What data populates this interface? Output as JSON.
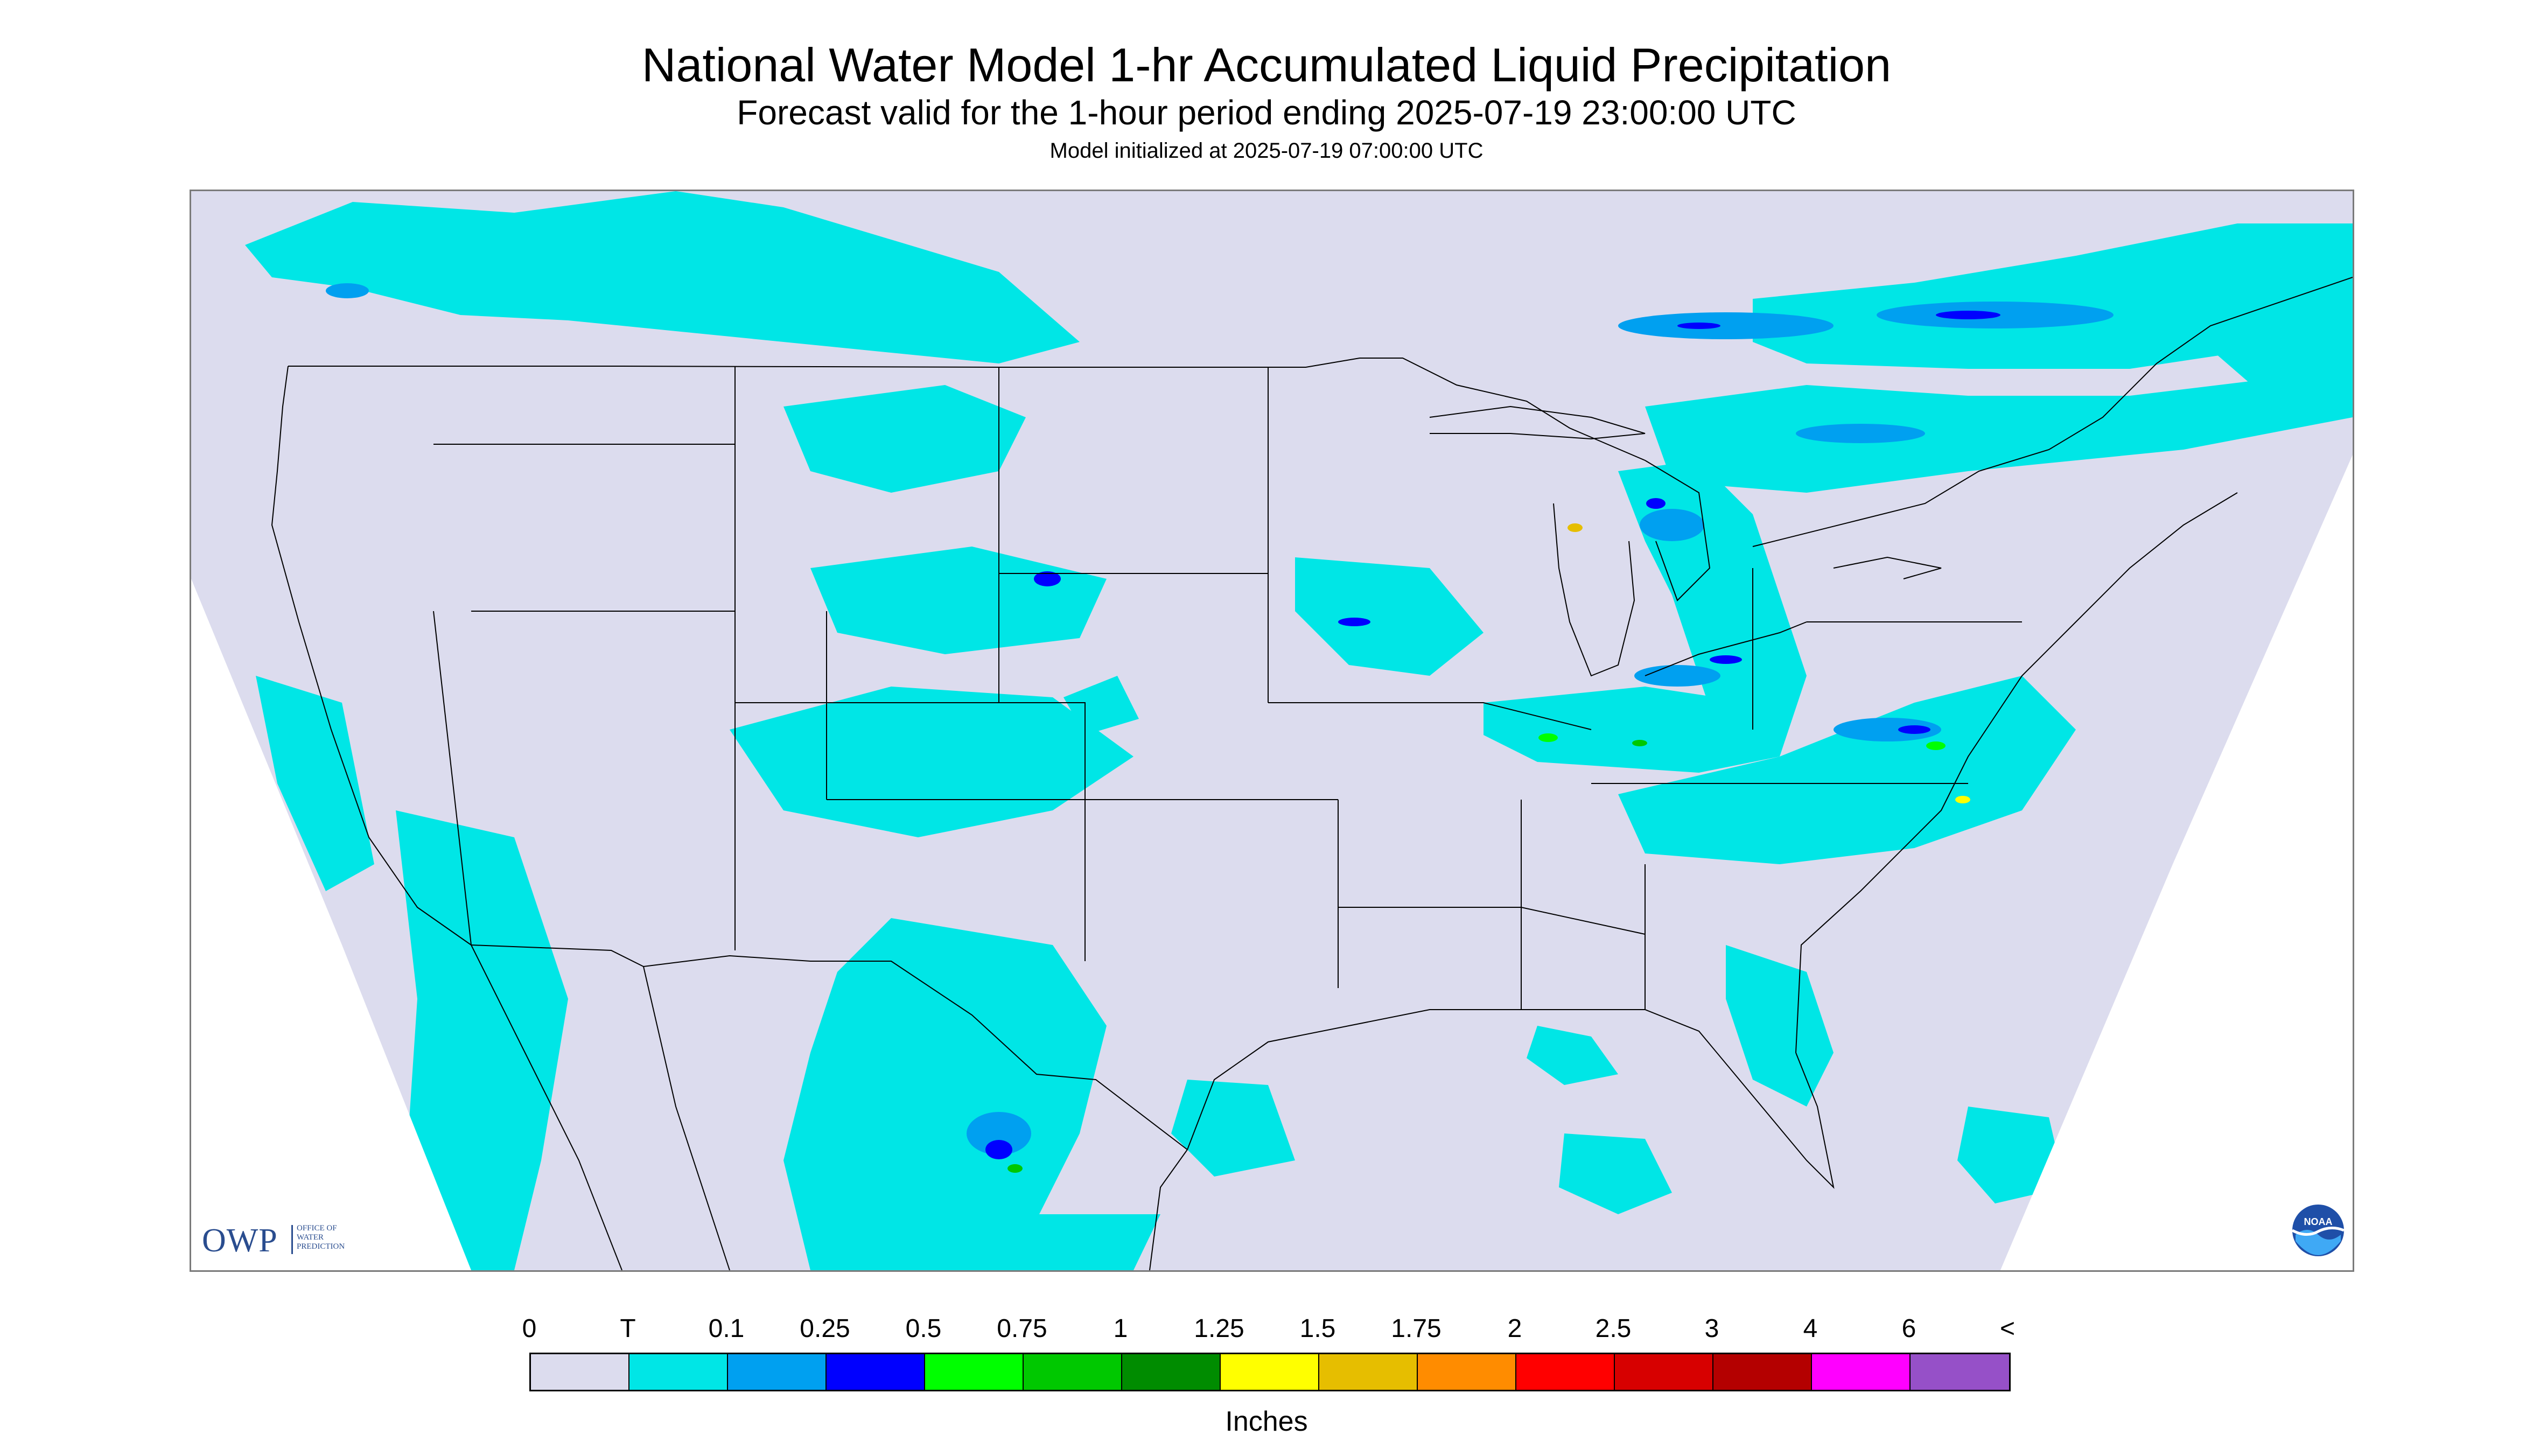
{
  "header": {
    "title": "National Water Model 1-hr Accumulated Liquid Precipitation",
    "subtitle": "Forecast valid for the 1-hour period ending 2025-07-19 23:00:00 UTC",
    "init_line": "Model initialized at 2025-07-19 07:00:00 UTC"
  },
  "logos": {
    "owp_text": "OWP",
    "owp_sub": "OFFICE OF\nWATER\nPREDICTION",
    "noaa_text": "NOAA"
  },
  "legend": {
    "title": "Inches",
    "labels": [
      "0",
      "T",
      "0.1",
      "0.25",
      "0.5",
      "0.75",
      "1",
      "1.25",
      "1.5",
      "1.75",
      "2",
      "2.5",
      "3",
      "4",
      "6",
      "<"
    ],
    "colors": [
      "#dcdcee",
      "#00e6e6",
      "#00a0f0",
      "#0000ff",
      "#00ff00",
      "#00c800",
      "#008c00",
      "#ffff00",
      "#e6be00",
      "#ff8c00",
      "#ff0000",
      "#d70000",
      "#b40000",
      "#ff00ff",
      "#9650c8"
    ]
  },
  "map": {
    "background_color": "#dcdcee",
    "outside_color": "#ffffff",
    "line_color": "#000000"
  }
}
